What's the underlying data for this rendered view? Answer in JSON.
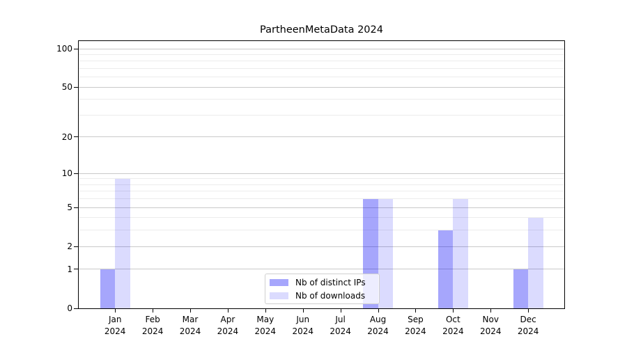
{
  "chart_data": {
    "type": "bar",
    "title": "PartheenMetaData 2024",
    "categories": [
      "Jan",
      "Feb",
      "Mar",
      "Apr",
      "May",
      "Jun",
      "Jul",
      "Aug",
      "Sep",
      "Oct",
      "Nov",
      "Dec"
    ],
    "x_tick_second_line": "2024",
    "series": [
      {
        "name": "Nb of distinct IPs",
        "color": "rgba(0,0,245,0.35)",
        "values": [
          1,
          0,
          0,
          0,
          0,
          0,
          0,
          6,
          0,
          3,
          0,
          1
        ]
      },
      {
        "name": "Nb of downloads",
        "color": "rgba(0,0,245,0.14)",
        "values": [
          9,
          0,
          0,
          0,
          0,
          0,
          0,
          6,
          0,
          6,
          0,
          4
        ]
      }
    ],
    "y_scale": "log1p",
    "y_ticks": [
      0,
      1,
      2,
      5,
      10,
      20,
      50,
      100
    ],
    "y_minor_gridlines": [
      3,
      4,
      6,
      7,
      8,
      9,
      30,
      40,
      60,
      70,
      80,
      90
    ],
    "ylim": [
      0,
      115
    ],
    "grid": true,
    "legend_position": "lower center inside",
    "colors": {
      "major_grid": "#c9c9c9",
      "minor_grid": "#ececec",
      "axis": "#000000",
      "text": "#000000",
      "background": "#ffffff"
    }
  }
}
